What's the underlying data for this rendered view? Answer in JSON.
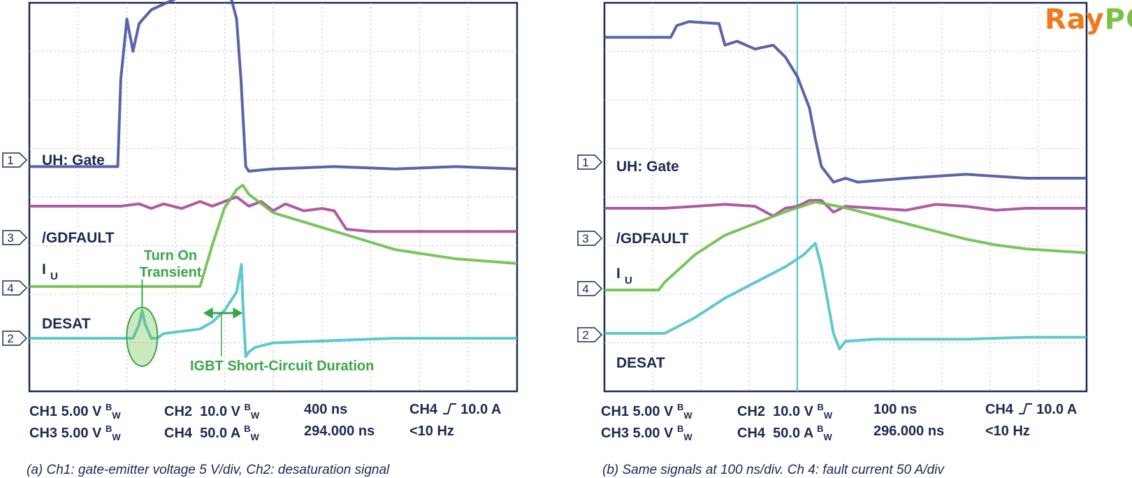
{
  "brand": {
    "part1": "Ray",
    "part2": "PCB",
    "color1": "#f07a1a",
    "color2": "#7cc242"
  },
  "colors": {
    "gate": "#4a52a0",
    "gdfault": "#a8489a",
    "current": "#6cbf4a",
    "desat": "#4cc3c9",
    "grid": "#b8bcc8",
    "frame": "#1b2a52",
    "annotation": "#3aa64a"
  },
  "chart_data": [
    {
      "type": "line",
      "panel": "a",
      "channel_labels": [
        "UH: Gate",
        "/GDFAULT",
        "I",
        "DESAT"
      ],
      "channel_label_subscript": "U",
      "markers": [
        "1",
        "3",
        "4",
        "2"
      ],
      "annotations": [
        "Turn On",
        "Transient",
        "IGBT Short-Circuit Duration"
      ],
      "timebase": "400 ns",
      "settings": {
        "row1": {
          "ch1": "CH1 5.00 V",
          "bw1": "B",
          "ch2": "CH2",
          "ch2_val": "10.0 V",
          "bw2": "B",
          "time": "400 ns",
          "trig_ch": "CH4",
          "trig_level": "10.0 A"
        },
        "row2": {
          "ch3": "CH3 5.00 V",
          "bw3": "B",
          "ch4": "CH4",
          "ch4_val": "50.0 A",
          "bw4": "B",
          "pos": "294.000 ns",
          "freq": "<10 Hz"
        }
      },
      "caption": "(a) Ch1: gate-emitter voltage 5 V/div, Ch2: desaturation signal",
      "series": [
        {
          "key": "gate",
          "x": [
            0,
            0.8,
            1.45,
            1.5,
            1.6,
            1.7,
            1.8,
            2,
            2.5,
            2.8,
            3,
            3.2,
            3.3,
            3.4,
            3.47,
            3.55,
            3.6,
            4,
            5,
            6,
            7,
            8
          ],
          "y": [
            0.1,
            0.1,
            0.1,
            2.0,
            3.3,
            2.6,
            3.2,
            3.5,
            3.8,
            3.9,
            3.85,
            3.95,
            3.8,
            3.3,
            2.0,
            0.1,
            0.0,
            0.05,
            0.1,
            0.05,
            0.1,
            0.05
          ]
        },
        {
          "key": "gdfault",
          "x": [
            0,
            1.5,
            1.8,
            2,
            2.2,
            2.5,
            2.8,
            3,
            3.2,
            3.4,
            3.5,
            3.6,
            3.8,
            4,
            4.2,
            4.5,
            4.8,
            5,
            5.2,
            5.6,
            6,
            7,
            8
          ],
          "y": [
            0,
            0,
            0.05,
            -0.05,
            0.05,
            -0.05,
            0.1,
            0,
            0.1,
            0.2,
            0.1,
            0,
            0.1,
            -0.1,
            0.05,
            -0.1,
            -0.05,
            -0.1,
            -0.5,
            -0.55,
            -0.55,
            -0.55,
            -0.55
          ]
        },
        {
          "key": "current",
          "x": [
            0,
            2.8,
            3.0,
            3.2,
            3.4,
            3.5,
            3.6,
            3.8,
            4,
            4.5,
            5,
            5.5,
            6,
            6.5,
            7,
            7.5,
            8
          ],
          "y": [
            0,
            0,
            0.9,
            1.7,
            2.1,
            2.2,
            2.0,
            1.8,
            1.6,
            1.4,
            1.2,
            1.0,
            0.8,
            0.7,
            0.6,
            0.55,
            0.5
          ]
        },
        {
          "key": "desat",
          "x": [
            0,
            1.7,
            1.8,
            1.85,
            1.9,
            2.0,
            2.1,
            2.2,
            2.5,
            2.8,
            3.0,
            3.2,
            3.4,
            3.48,
            3.5,
            3.55,
            3.6,
            3.7,
            4,
            5,
            6,
            7,
            8
          ],
          "y": [
            0,
            0,
            0.3,
            0.6,
            0.3,
            0,
            0,
            0.1,
            0.15,
            0.2,
            0.35,
            0.6,
            1.0,
            1.6,
            0.8,
            -0.4,
            -0.3,
            -0.2,
            -0.1,
            -0.05,
            0,
            0,
            0
          ]
        }
      ]
    },
    {
      "type": "line",
      "panel": "b",
      "channel_labels": [
        "UH: Gate",
        "/GDFAULT",
        "I",
        "DESAT"
      ],
      "channel_label_subscript": "U",
      "markers": [
        "1",
        "3",
        "4",
        "2"
      ],
      "timebase": "100 ns",
      "settings": {
        "row1": {
          "ch1": "CH1 5.00 V",
          "bw1": "B",
          "ch2": "CH2",
          "ch2_val": "10.0 V",
          "bw2": "B",
          "time": "100 ns",
          "trig_ch": "CH4",
          "trig_level": "10.0 A"
        },
        "row2": {
          "ch3": "CH3 5.00 V",
          "bw3": "B",
          "ch4": "CH4",
          "ch4_val": "50.0 A",
          "bw4": "B",
          "pos": "296.000 ns",
          "freq": "<10 Hz"
        }
      },
      "caption": "(b) Same signals at 100 ns/div. Ch 4: fault current 50 A/div",
      "series": [
        {
          "key": "gate",
          "x": [
            0,
            1.1,
            1.2,
            1.4,
            1.9,
            2.0,
            2.2,
            2.5,
            2.8,
            3.0,
            3.2,
            3.4,
            3.5,
            3.6,
            3.8,
            4.0,
            4.2,
            5,
            6,
            7,
            8
          ],
          "y": [
            3.6,
            3.6,
            3.9,
            4.0,
            3.95,
            3.4,
            3.5,
            3.3,
            3.4,
            3.1,
            2.6,
            1.8,
            1.0,
            0.3,
            -0.1,
            0,
            -0.1,
            0,
            0.1,
            0,
            0
          ]
        },
        {
          "key": "gdfault",
          "x": [
            0,
            1,
            1.5,
            2,
            2.5,
            2.8,
            3,
            3.2,
            3.4,
            3.6,
            3.8,
            4.0,
            4.5,
            5,
            5.5,
            6,
            6.5,
            7,
            7.5,
            8
          ],
          "y": [
            0,
            0,
            0.05,
            0.1,
            0.05,
            -0.2,
            0,
            0.05,
            0.2,
            0.2,
            -0.1,
            0.05,
            0,
            -0.05,
            0.1,
            0.05,
            -0.05,
            0,
            0,
            0
          ]
        },
        {
          "key": "current",
          "x": [
            0,
            0.9,
            1.0,
            1.5,
            2.0,
            2.5,
            3.0,
            3.5,
            4.0,
            4.5,
            5.0,
            5.5,
            6.0,
            6.5,
            7.0,
            7.5,
            8
          ],
          "y": [
            0,
            0,
            0.2,
            0.9,
            1.4,
            1.7,
            2.0,
            2.25,
            2.1,
            1.9,
            1.7,
            1.5,
            1.3,
            1.15,
            1.05,
            1.0,
            0.95
          ]
        },
        {
          "key": "desat",
          "x": [
            0,
            1.0,
            1.5,
            2.0,
            2.5,
            3.0,
            3.3,
            3.5,
            3.6,
            3.8,
            3.9,
            4.0,
            4.5,
            5,
            6,
            7,
            8
          ],
          "y": [
            0,
            0,
            0.4,
            0.9,
            1.3,
            1.7,
            2.0,
            2.3,
            1.7,
            0,
            -0.4,
            -0.2,
            -0.15,
            -0.15,
            -0.15,
            -0.1,
            -0.1
          ]
        }
      ],
      "cursor_x": 3.2
    }
  ]
}
